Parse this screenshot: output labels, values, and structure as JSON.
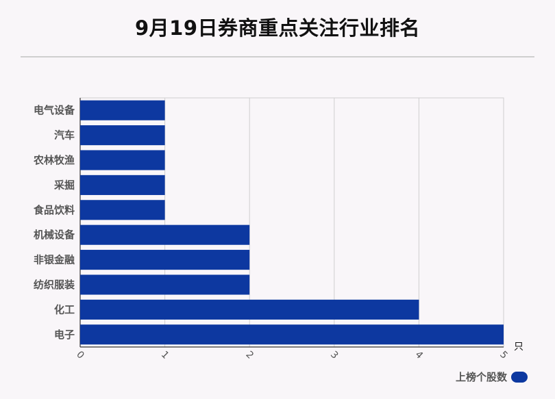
{
  "chart_data": {
    "type": "bar",
    "orientation": "horizontal",
    "title": "9月19日券商重点关注行业排名",
    "categories": [
      "电气设备",
      "汽车",
      "农林牧渔",
      "采掘",
      "食品饮料",
      "机械设备",
      "非银金融",
      "纺织服装",
      "化工",
      "电子"
    ],
    "series": [
      {
        "name": "上榜个股数",
        "values": [
          1,
          1,
          1,
          1,
          1,
          2,
          2,
          2,
          4,
          5
        ]
      }
    ],
    "xlim": [
      0,
      5
    ],
    "xticks": [
      "0",
      "1",
      "2",
      "3",
      "4",
      "5"
    ],
    "xunit": "只",
    "bar_color": "#0d38a0",
    "grid": true,
    "legend_position": "bottom-right"
  }
}
